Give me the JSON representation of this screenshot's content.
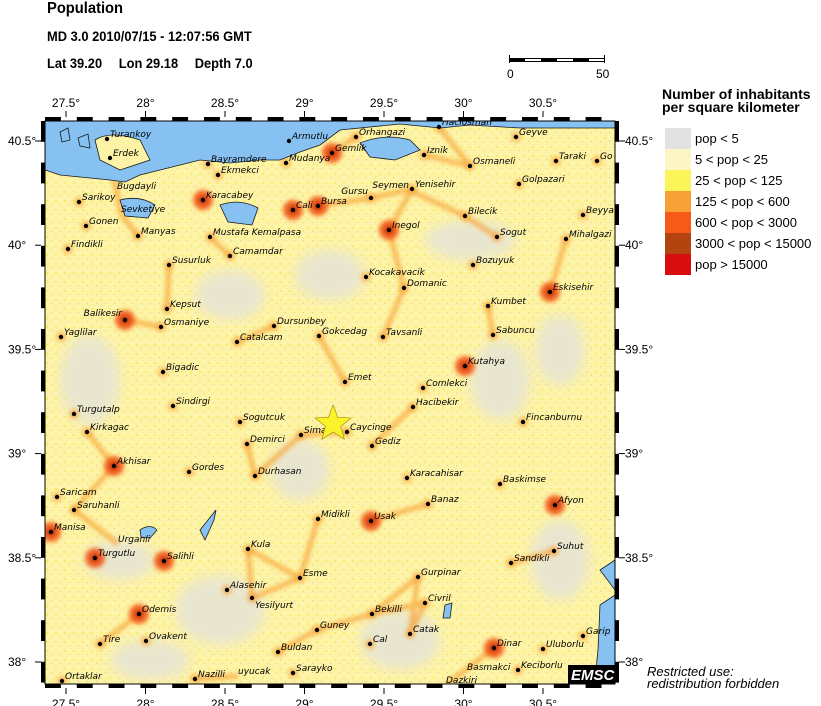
{
  "header": {
    "title": "Population",
    "event": "MD 3.0  2010/07/15 - 12:07:56 GMT",
    "lat": "Lat 39.20",
    "lon": "Lon  29.18",
    "depth": "Depth  7.0"
  },
  "scale_bar": {
    "start": "0",
    "end": "50"
  },
  "axes": {
    "lon_ticks": [
      "27.5°",
      "28°",
      "28.5°",
      "29°",
      "29.5°",
      "30°",
      "30.5°"
    ],
    "lat_ticks": [
      "40.5°",
      "40°",
      "39.5°",
      "39°",
      "38.5°",
      "38°"
    ]
  },
  "legend": {
    "title_line1": "Number of inhabitants",
    "title_line2": "per square kilometer",
    "items": [
      {
        "label": "pop < 5",
        "color": "#e2e2e2"
      },
      {
        "label": "5 < pop < 25",
        "color": "#fbf6c4"
      },
      {
        "label": "25 < pop < 125",
        "color": "#fbf55a"
      },
      {
        "label": "125 < pop < 600",
        "color": "#f6a035"
      },
      {
        "label": "600 < pop < 3000",
        "color": "#f75a16"
      },
      {
        "label": "3000 < pop < 15000",
        "color": "#b4440f"
      },
      {
        "label": "pop > 15000",
        "color": "#d80d0d"
      }
    ]
  },
  "epicenter": {
    "lat": 39.2,
    "lon": 29.18,
    "marker": "star-icon",
    "color": "#fbf32a"
  },
  "water_color": "#86c1f2",
  "cities": [
    "Turankoy",
    "Erdek",
    "Armutlu",
    "Orhangazi",
    "Haciosman",
    "Geyve",
    "Gemlik",
    "Mudanya",
    "Bayramdere",
    "Ekmekci",
    "Iznik",
    "Osmaneli",
    "Taraki",
    "Go",
    "Golpazari",
    "Sarikoy",
    "Bugdayli",
    "Karacabey",
    "Cali",
    "Bursa",
    "Gursu",
    "Seymen",
    "Yenisehir",
    "Sevketiye",
    "Gonen",
    "Manyas",
    "Mustafa Kemalpasa",
    "Bilecik",
    "Beyya",
    "Inegol",
    "Sogut",
    "Mihalgazi",
    "Findikli",
    "Susurluk",
    "Camamdar",
    "Bozuyuk",
    "Kocakavacik",
    "Domanic",
    "Eskisehir",
    "Kepsut",
    "Balikesir",
    "Osmaniye",
    "Kumbet",
    "Yaglilar",
    "Dursunbey",
    "Gokcedag",
    "Catalcam",
    "Tavsanli",
    "Sabuncu",
    "Kutahya",
    "Bigadic",
    "Emet",
    "Comlekci",
    "Sindirgi",
    "Sogutcuk",
    "Hacibekir",
    "Fincanburnu",
    "Turgutalp",
    "Simav",
    "Caycinge",
    "Kirkagac",
    "Demirci",
    "Gediz",
    "Akhisar",
    "Gordes",
    "Durhasan",
    "Karacahisar",
    "Baskimse",
    "Saricam",
    "Saruhanli",
    "Afyon",
    "Banaz",
    "Midikli",
    "Usak",
    "Manisa",
    "Kula",
    "Suhut",
    "Turgutlu",
    "Urganli",
    "Salihli",
    "Sandikli",
    "Esme",
    "Gurpinar",
    "Alasehir",
    "Yesilyurt",
    "Civril",
    "Bekilli",
    "Odemis",
    "Guney",
    "Catak",
    "Tire",
    "Ovakent",
    "Buldan",
    "Cal",
    "Dinar",
    "Garip",
    "Uluborlu",
    "Nazilli",
    "uyucak",
    "Sarayko",
    "Ortaklar",
    "Dazkiri",
    "Basmakci",
    "Keciborlu"
  ],
  "watermark": "EMSC",
  "note_line1": "Restricted use:",
  "note_line2": "redistribution forbidden"
}
